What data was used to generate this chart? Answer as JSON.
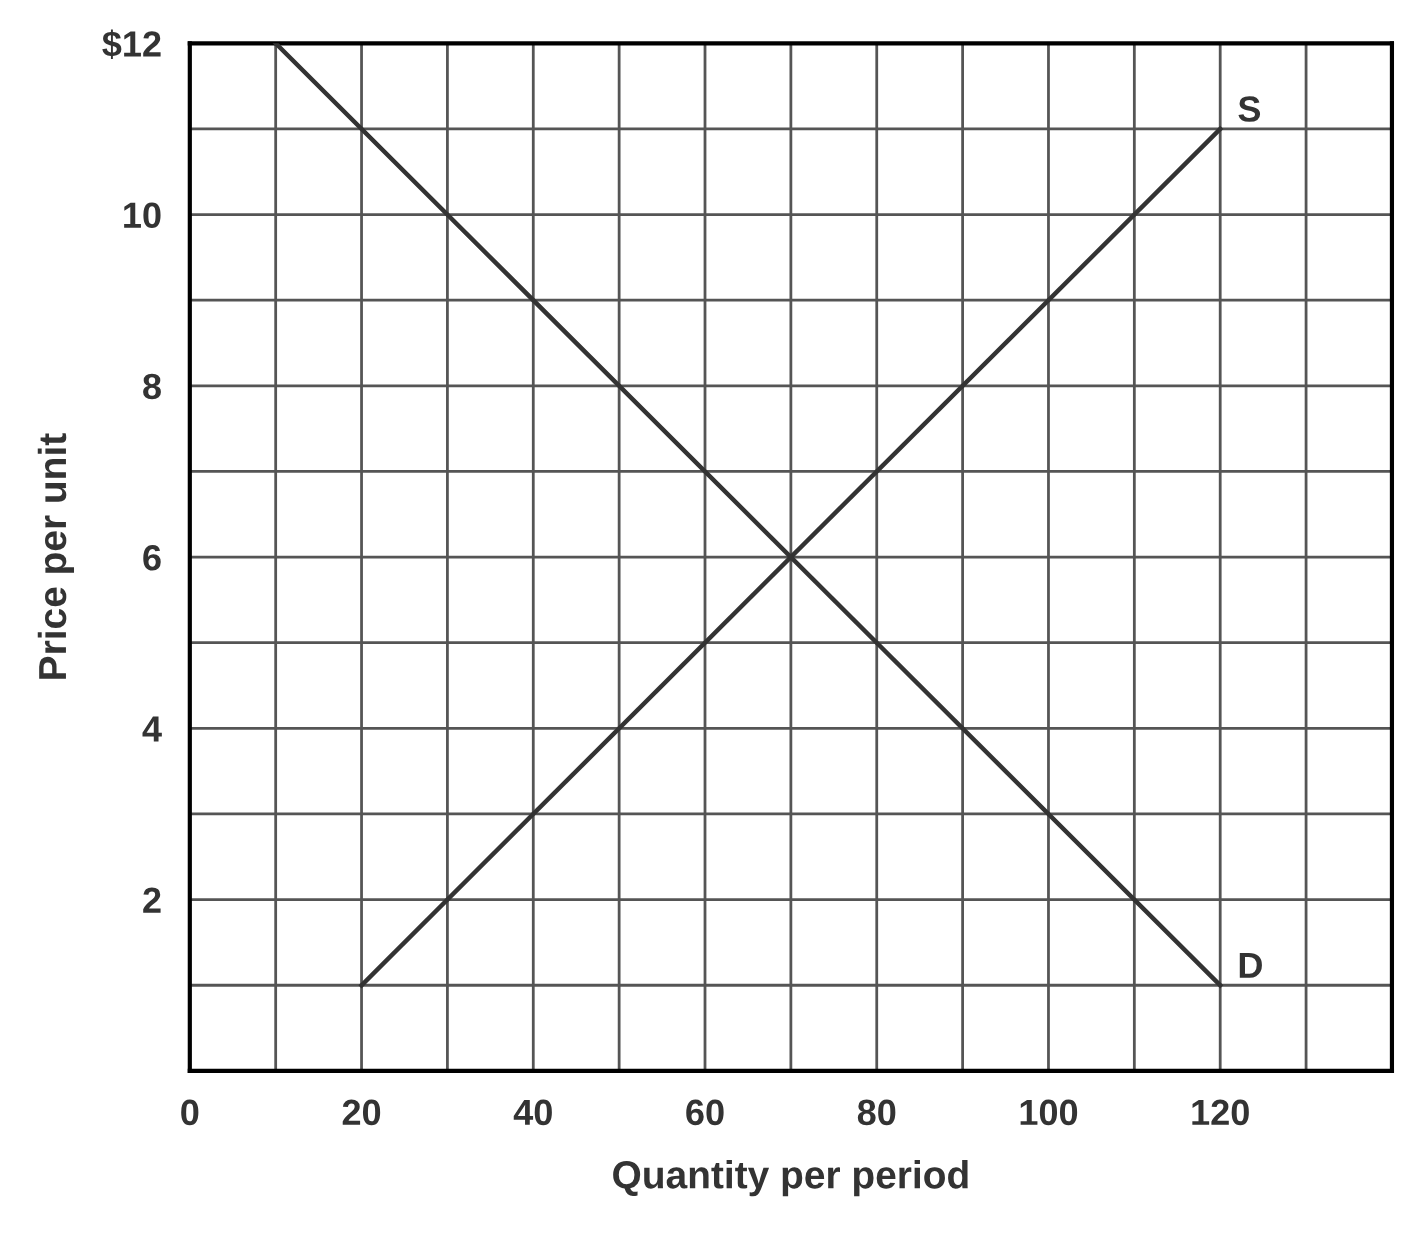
{
  "chart_data": {
    "type": "line",
    "xlabel": "Quantity per period",
    "ylabel": "Price per unit",
    "series": [
      {
        "name": "S",
        "color": "#333333",
        "x": [
          20,
          120
        ],
        "values": [
          1,
          11
        ]
      },
      {
        "name": "D",
        "color": "#333333",
        "x": [
          10,
          120
        ],
        "values": [
          12,
          1
        ]
      }
    ],
    "xlim": [
      0,
      140
    ],
    "ylim": [
      0,
      12
    ],
    "xticks": [
      0,
      {
        "value": 10,
        "label": null
      },
      20,
      {
        "value": 30,
        "label": null
      },
      40,
      {
        "value": 50,
        "label": null
      },
      60,
      {
        "value": 70,
        "label": null
      },
      80,
      {
        "value": 90,
        "label": null
      },
      100,
      {
        "value": 110,
        "label": null
      },
      120,
      {
        "value": 130,
        "label": null
      }
    ],
    "yticks": [
      {
        "value": 1,
        "label": null
      },
      2,
      {
        "value": 3,
        "label": null
      },
      4,
      {
        "value": 5,
        "label": null
      },
      6,
      {
        "value": 7,
        "label": null
      },
      8,
      {
        "value": 9,
        "label": null
      },
      10,
      {
        "value": 11,
        "label": null
      },
      {
        "value": 12,
        "label": "$12"
      }
    ],
    "grid": true,
    "legend": false,
    "marker": "none",
    "line_style": "solid"
  }
}
